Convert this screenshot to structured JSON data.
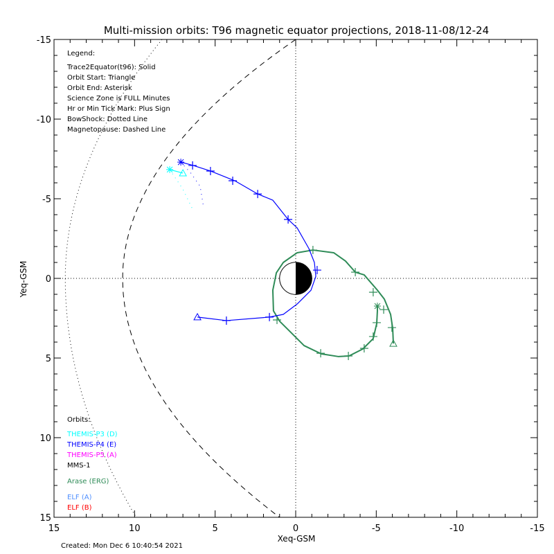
{
  "chart_data": {
    "type": "line",
    "title": "Multi-mission orbits: T96 magnetic equator projections, 2018-11-08/12-24",
    "xlabel": "Xeq-GSM",
    "ylabel": "Yeq-GSM",
    "xlim": [
      15,
      -15
    ],
    "ylim": [
      -15,
      15
    ],
    "xticks": [
      "15",
      "10",
      "5",
      "0",
      "-5",
      "-10",
      "-15"
    ],
    "xtick_values": [
      15,
      10,
      5,
      0,
      -5,
      -10,
      -15
    ],
    "yticks": [
      "-15",
      "-10",
      "-5",
      "0",
      "5",
      "10",
      "15"
    ],
    "ytick_values": [
      -15,
      -10,
      -5,
      0,
      5,
      10,
      15
    ],
    "legend": {
      "title": "Legend:",
      "lines": [
        "Trace2Equator(t96): Solid",
        "Orbit Start: Triangle",
        "Orbit End: Asterisk",
        "Science Zone is FULL Minutes",
        "Hr or Min Tick Mark: Plus Sign",
        "BowShock: Dotted Line",
        "Magnetopause: Dashed Line"
      ]
    },
    "orbits_legend": {
      "title": "Orbits:",
      "items": [
        {
          "label": "THEMIS-P3 (D)",
          "color": "#00ffff"
        },
        {
          "label": "THEMIS-P4 (E)",
          "color": "#0000ff"
        },
        {
          "label": "THEMIS-P5 (A)",
          "color": "#ff00ff"
        },
        {
          "label": "MMS-1",
          "color": "#000000"
        },
        {
          "label": "Arase (ERG)",
          "color": "#2e8b57"
        },
        {
          "label": "ELF (A)",
          "color": "#4f8fff"
        },
        {
          "label": "ELF (B)",
          "color": "#ff0000"
        }
      ]
    },
    "series": [
      {
        "name": "Arase (ERG)",
        "color": "#2e8b57",
        "points": [
          [
            -6.06,
            4.09
          ],
          [
            -6.02,
            3.13
          ],
          [
            -5.89,
            2.26
          ],
          [
            -5.5,
            1.3
          ],
          [
            -5.07,
            0.74
          ],
          [
            -4.25,
            -0.22
          ],
          [
            -3.7,
            -0.39
          ],
          [
            -3.09,
            -1.09
          ],
          [
            -2.36,
            -1.61
          ],
          [
            -1.07,
            -1.78
          ],
          [
            -0.09,
            -1.61
          ],
          [
            0.77,
            -1.0
          ],
          [
            1.2,
            -0.35
          ],
          [
            1.42,
            0.74
          ],
          [
            1.38,
            2.04
          ],
          [
            0.99,
            2.7
          ],
          [
            0.34,
            3.35
          ],
          [
            -0.52,
            4.22
          ],
          [
            -1.59,
            4.74
          ],
          [
            -2.66,
            4.91
          ],
          [
            -3.31,
            4.87
          ],
          [
            -4.17,
            4.43
          ],
          [
            -4.81,
            3.78
          ],
          [
            -5.03,
            2.83
          ],
          [
            -5.07,
            2.04
          ],
          [
            -5.07,
            1.74
          ]
        ],
        "ticks": [
          [
            -1.07,
            -1.78
          ],
          [
            -3.7,
            -0.39
          ],
          [
            -4.81,
            0.87
          ],
          [
            -5.46,
            1.96
          ],
          [
            -5.97,
            3.09
          ],
          [
            1.16,
            2.61
          ],
          [
            -1.55,
            4.7
          ],
          [
            -3.27,
            4.87
          ],
          [
            -4.25,
            4.39
          ],
          [
            -4.81,
            3.65
          ],
          [
            -5.03,
            2.78
          ]
        ],
        "start": [
          -6.06,
          4.09
        ],
        "end": [
          -5.07,
          1.74
        ],
        "trace": []
      },
      {
        "name": "THEMIS-P4 (E)",
        "color": "#0000ff",
        "points": [
          [
            6.1,
            2.43
          ],
          [
            4.3,
            2.65
          ],
          [
            1.63,
            2.43
          ],
          [
            0.77,
            2.26
          ],
          [
            -0.09,
            1.61
          ],
          [
            -0.95,
            0.74
          ],
          [
            -1.25,
            -0.13
          ],
          [
            -1.16,
            -1.0
          ],
          [
            -0.82,
            -1.87
          ],
          [
            -0.09,
            -3.17
          ],
          [
            0.47,
            -3.7
          ],
          [
            1.42,
            -4.91
          ],
          [
            2.36,
            -5.3
          ],
          [
            3.78,
            -6.13
          ],
          [
            5.29,
            -6.74
          ],
          [
            6.36,
            -7.09
          ],
          [
            7.13,
            -7.3
          ]
        ],
        "ticks": [
          [
            4.3,
            2.65
          ],
          [
            1.63,
            2.43
          ],
          [
            -1.33,
            -0.52
          ],
          [
            0.47,
            -3.7
          ],
          [
            2.36,
            -5.3
          ],
          [
            3.91,
            -6.13
          ],
          [
            5.29,
            -6.74
          ],
          [
            6.4,
            -7.09
          ]
        ],
        "start": [
          6.1,
          2.43
        ],
        "end": [
          7.13,
          -7.3
        ],
        "trace": [
          [
            7.13,
            -7.3
          ],
          [
            6.5,
            -6.6
          ],
          [
            5.93,
            -5.78
          ],
          [
            5.72,
            -4.48
          ]
        ]
      },
      {
        "name": "THEMIS-P3 (D)",
        "color": "#00ffff",
        "points": [
          [
            7.0,
            -6.61
          ],
          [
            7.82,
            -6.83
          ]
        ],
        "ticks": [],
        "start": [
          7.0,
          -6.61
        ],
        "end": [
          7.82,
          -6.83
        ],
        "trace": [
          [
            7.82,
            -6.83
          ],
          [
            7.0,
            -5.6
          ],
          [
            6.36,
            -4.26
          ]
        ]
      }
    ],
    "bow_shock": {
      "nose_x": 14.3,
      "y_range": [
        -15,
        15
      ]
    },
    "magnetopause": {
      "nose_x": 10.74,
      "y_range": [
        -15,
        15
      ]
    }
  },
  "footer": {
    "created": "Created: Mon Dec  6 10:40:54 2021"
  }
}
